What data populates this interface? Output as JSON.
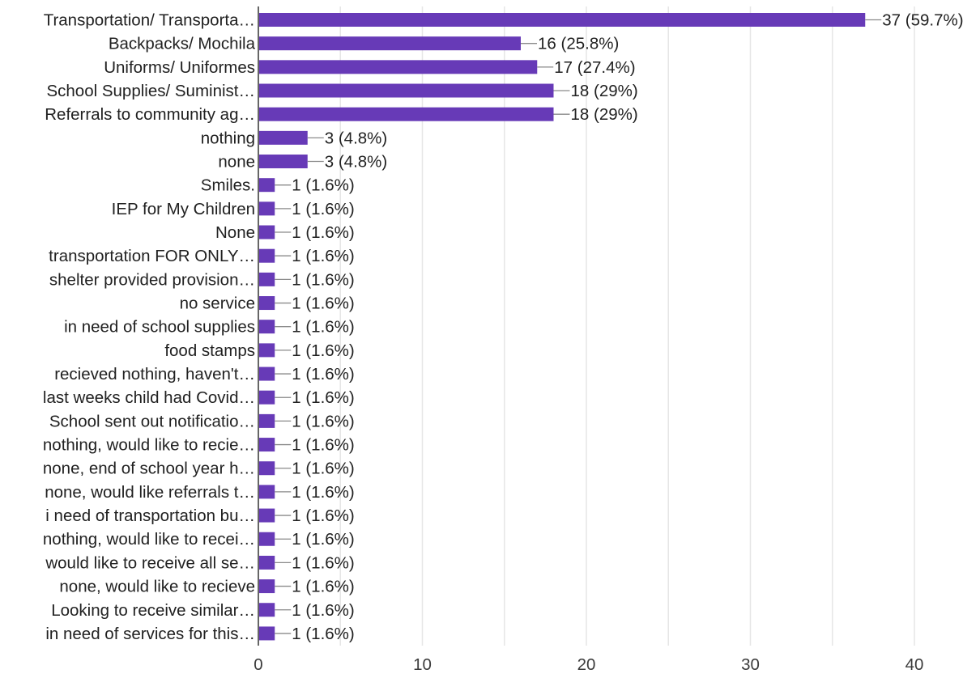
{
  "chart_data": {
    "type": "bar",
    "orientation": "horizontal",
    "title": "",
    "xlabel": "",
    "ylabel": "",
    "xlim": [
      0,
      40
    ],
    "x_ticks": [
      0,
      10,
      20,
      30,
      40
    ],
    "grid": "vertical",
    "legend": "none",
    "bar_color": "#673ab7",
    "categories": [
      "Transportation/ Transporta…",
      "Backpacks/ Mochila",
      "Uniforms/ Uniformes",
      "School Supplies/ Suminist…",
      "Referrals to community ag…",
      "nothing",
      "none",
      "Smiles.",
      "IEP for My Children",
      "None",
      "transportation FOR ONLY…",
      "shelter provided provision…",
      "no service",
      "in need of school supplies",
      "food stamps",
      "recieved nothing, haven't…",
      "last weeks child had Covid…",
      "School sent out notificatio…",
      "nothing, would like to recie…",
      "none, end of school year h…",
      "none, would like referrals t…",
      "i need of transportation bu…",
      "nothing, would like to recei…",
      "would like to receive all se…",
      "none, would like to recieve",
      "Looking to receive similar…",
      "in need of services for this…"
    ],
    "values": [
      37,
      16,
      17,
      18,
      18,
      3,
      3,
      1,
      1,
      1,
      1,
      1,
      1,
      1,
      1,
      1,
      1,
      1,
      1,
      1,
      1,
      1,
      1,
      1,
      1,
      1,
      1
    ],
    "data_labels": [
      "37 (59.7%)",
      "16 (25.8%)",
      "17 (27.4%)",
      "18 (29%)",
      "18 (29%)",
      "3 (4.8%)",
      "3 (4.8%)",
      "1 (1.6%)",
      "1 (1.6%)",
      "1 (1.6%)",
      "1 (1.6%)",
      "1 (1.6%)",
      "1 (1.6%)",
      "1 (1.6%)",
      "1 (1.6%)",
      "1 (1.6%)",
      "1 (1.6%)",
      "1 (1.6%)",
      "1 (1.6%)",
      "1 (1.6%)",
      "1 (1.6%)",
      "1 (1.6%)",
      "1 (1.6%)",
      "1 (1.6%)",
      "1 (1.6%)",
      "1 (1.6%)",
      "1 (1.6%)"
    ]
  }
}
